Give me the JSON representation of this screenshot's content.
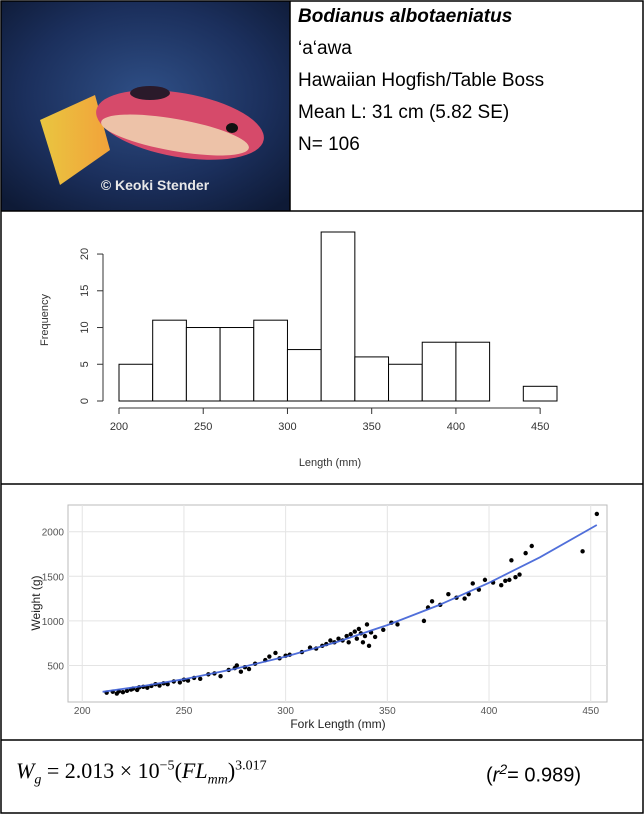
{
  "header": {
    "scientific_name": "Bodianus albotaeniatus",
    "hawaiian_name": "‘a‘awa",
    "common_name": "Hawaiian Hogfish/Table Boss",
    "mean_length": "Mean L: 31 cm (5.82 SE)",
    "sample_size": "N= 106",
    "photo_credit": "© Keoki Stender"
  },
  "chart_data": [
    {
      "type": "histogram",
      "x_label": "Length (mm)",
      "y_label": "Frequency",
      "bins": [
        200,
        220,
        240,
        260,
        280,
        300,
        320,
        340,
        360,
        380,
        400,
        420,
        440,
        460
      ],
      "values": [
        5,
        11,
        10,
        10,
        11,
        7,
        23,
        6,
        5,
        8,
        8,
        0,
        2
      ],
      "color": "#ffffff",
      "edge_color": "#000000",
      "xlim": [
        200,
        460
      ],
      "ylim": [
        0,
        23
      ],
      "xticks": [
        200,
        250,
        300,
        350,
        400,
        450
      ],
      "yticks": [
        0,
        5,
        10,
        15,
        20
      ]
    },
    {
      "type": "scatter",
      "x_label": "Fork Length (mm)",
      "y_label": "Weight (g)",
      "x": [
        212,
        215,
        217,
        218,
        220,
        222,
        224,
        225,
        227,
        228,
        230,
        232,
        234,
        236,
        238,
        240,
        242,
        245,
        248,
        250,
        252,
        255,
        258,
        262,
        265,
        268,
        272,
        275,
        276,
        278,
        280,
        282,
        285,
        290,
        292,
        295,
        297,
        300,
        302,
        308,
        312,
        315,
        318,
        320,
        322,
        324,
        326,
        328,
        330,
        331,
        332,
        334,
        335,
        336,
        337,
        338,
        339,
        340,
        341,
        342,
        344,
        348,
        352,
        355,
        368,
        370,
        372,
        376,
        380,
        384,
        388,
        390,
        392,
        395,
        398,
        402,
        406,
        408,
        410,
        411,
        413,
        415,
        418,
        421,
        446,
        453
      ],
      "values": [
        195,
        205,
        185,
        210,
        200,
        215,
        230,
        240,
        225,
        255,
        260,
        250,
        270,
        290,
        275,
        300,
        290,
        320,
        310,
        340,
        330,
        360,
        350,
        400,
        410,
        380,
        450,
        470,
        500,
        430,
        480,
        460,
        520,
        560,
        600,
        640,
        580,
        610,
        620,
        650,
        700,
        690,
        720,
        740,
        780,
        760,
        800,
        780,
        830,
        760,
        850,
        880,
        800,
        910,
        860,
        760,
        830,
        960,
        720,
        870,
        820,
        900,
        980,
        960,
        1000,
        1150,
        1220,
        1180,
        1300,
        1260,
        1250,
        1300,
        1420,
        1350,
        1460,
        1430,
        1400,
        1450,
        1460,
        1680,
        1490,
        1520,
        1760,
        1840,
        1780,
        2200
      ],
      "color": "#000000",
      "fit": {
        "x": [
          210,
          230,
          250,
          275,
          300,
          325,
          350,
          375,
          400,
          425,
          453
        ],
        "values": [
          204,
          269,
          346,
          461,
          599,
          762,
          953,
          1174,
          1427,
          1713,
          2076
        ],
        "color": "#3d5fd6"
      },
      "xlim": [
        193,
        458
      ],
      "ylim": [
        90,
        2300
      ],
      "xticks": [
        200,
        250,
        300,
        350,
        400,
        450
      ],
      "yticks": [
        500,
        1000,
        1500,
        2000
      ],
      "grid": true
    }
  ],
  "footer": {
    "equation": {
      "w": "W",
      "w_sub": "g",
      "coef": " = 2.013 × 10",
      "exp": "−5",
      "open": "(",
      "var": "FL",
      "var_sub": "mm",
      "close": ")",
      "power": "3.017"
    },
    "r2": {
      "open": "(",
      "r": "r",
      "sup": "2",
      "rest": "= 0.989)"
    }
  }
}
